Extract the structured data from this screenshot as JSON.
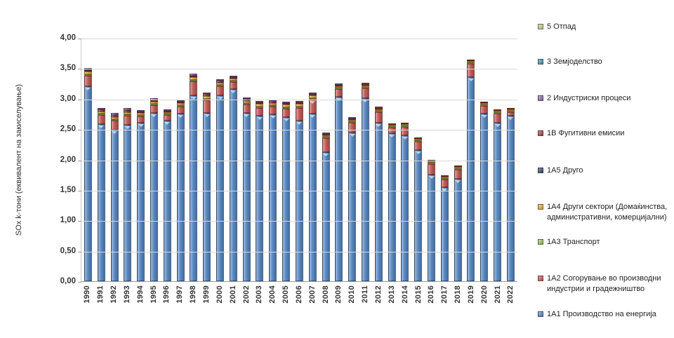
{
  "chart_data": {
    "type": "bar",
    "stacked": true,
    "title": "",
    "ylabel": "SOx k-тони (еквивалент на закиселување)",
    "xlabel": "",
    "ylim": [
      0,
      4
    ],
    "ytick_step": 0.5,
    "ytick_labels_top_to_bottom": [
      "4,00",
      "3,50",
      "3,00",
      "2,50",
      "2,00",
      "1,50",
      "1,00",
      "0,50",
      "0,00"
    ],
    "grid": true,
    "legend_position": "right",
    "categories": [
      "1990",
      "1991",
      "1992",
      "1993",
      "1994",
      "1995",
      "1996",
      "1997",
      "1998",
      "1999",
      "2000",
      "2001",
      "2002",
      "2003",
      "2004",
      "2005",
      "2006",
      "2007",
      "2008",
      "2009",
      "2010",
      "2011",
      "2012",
      "2013",
      "2014",
      "2015",
      "2016",
      "2017",
      "2018",
      "2019",
      "2020",
      "2021",
      "2022"
    ],
    "series": [
      {
        "name": "1А1 Производство на енергија",
        "color": "#4F81BD",
        "values": [
          3.2,
          2.58,
          2.49,
          2.57,
          2.6,
          2.77,
          2.64,
          2.75,
          3.06,
          2.77,
          3.06,
          3.16,
          2.77,
          2.72,
          2.74,
          2.7,
          2.64,
          2.75,
          2.12,
          3.03,
          2.45,
          3.01,
          2.6,
          2.43,
          2.4,
          2.16,
          1.75,
          1.55,
          1.68,
          3.36,
          2.75,
          2.6,
          2.72
        ]
      },
      {
        "name": "1А2 Согорување во производни индустрии и градежништво",
        "color": "#C0504D",
        "values": [
          0.18,
          0.15,
          0.15,
          0.15,
          0.11,
          0.12,
          0.09,
          0.12,
          0.22,
          0.2,
          0.14,
          0.11,
          0.13,
          0.13,
          0.13,
          0.14,
          0.21,
          0.24,
          0.23,
          0.13,
          0.16,
          0.16,
          0.18,
          0.09,
          0.14,
          0.14,
          0.18,
          0.12,
          0.15,
          0.21,
          0.13,
          0.15,
          0.06
        ]
      },
      {
        "name": "1А3 Транспорт",
        "color": "#9BBB59",
        "values": [
          0.02,
          0.02,
          0.02,
          0.02,
          0.02,
          0.02,
          0.02,
          0.02,
          0.02,
          0.02,
          0.02,
          0.02,
          0.02,
          0.02,
          0.02,
          0.02,
          0.02,
          0.02,
          0.01,
          0.01,
          0.01,
          0.01,
          0.01,
          0.01,
          0.01,
          0.01,
          0.01,
          0.01,
          0.01,
          0.01,
          0.01,
          0.01,
          0.01
        ]
      },
      {
        "name": "1А4 Други сектори (Домаќинства, административни, комерцијални)",
        "color": "#E8A33C",
        "values": [
          0.04,
          0.04,
          0.04,
          0.04,
          0.03,
          0.04,
          0.03,
          0.03,
          0.05,
          0.05,
          0.04,
          0.04,
          0.04,
          0.04,
          0.04,
          0.04,
          0.04,
          0.04,
          0.03,
          0.02,
          0.02,
          0.02,
          0.02,
          0.02,
          0.02,
          0.02,
          0.02,
          0.01,
          0.02,
          0.02,
          0.02,
          0.02,
          0.02
        ]
      },
      {
        "name": "1А5 Друго",
        "color": "#254061",
        "values": [
          0,
          0,
          0,
          0,
          0,
          0,
          0,
          0,
          0,
          0,
          0,
          0,
          0,
          0,
          0,
          0,
          0,
          0,
          0,
          0,
          0,
          0,
          0,
          0,
          0,
          0,
          0,
          0,
          0,
          0,
          0,
          0,
          0
        ]
      },
      {
        "name": "1В Фугитивни емисии",
        "color": "#9E3A33",
        "values": [
          0.03,
          0.03,
          0.03,
          0.03,
          0.02,
          0.02,
          0.02,
          0.02,
          0.03,
          0.03,
          0.03,
          0.02,
          0.03,
          0.03,
          0.03,
          0.02,
          0.02,
          0.02,
          0.01,
          0.01,
          0.01,
          0.01,
          0.01,
          0.01,
          0.01,
          0.01,
          0.01,
          0.01,
          0.01,
          0.01,
          0.01,
          0.01,
          0.01
        ]
      },
      {
        "name": "2 Индустриски процеси",
        "color": "#8064A2",
        "values": [
          0.03,
          0.03,
          0.03,
          0.03,
          0.03,
          0.03,
          0.02,
          0.03,
          0.03,
          0.03,
          0.02,
          0.02,
          0.01,
          0.01,
          0.01,
          0.01,
          0.01,
          0.01,
          0.01,
          0.01,
          0.01,
          0.01,
          0.01,
          0,
          0,
          0,
          0,
          0,
          0,
          0,
          0,
          0,
          0
        ]
      },
      {
        "name": "3 Земјоделство",
        "color": "#3E8FA8",
        "values": [
          0,
          0,
          0,
          0,
          0,
          0,
          0,
          0,
          0,
          0,
          0,
          0,
          0,
          0,
          0,
          0,
          0,
          0,
          0,
          0,
          0,
          0,
          0,
          0,
          0,
          0,
          0,
          0,
          0,
          0,
          0,
          0,
          0
        ]
      },
      {
        "name": "5 Отпад",
        "color": "#C8CC8F",
        "values": [
          0,
          0,
          0,
          0,
          0,
          0,
          0,
          0,
          0,
          0,
          0,
          0,
          0,
          0,
          0,
          0,
          0,
          0,
          0,
          0,
          0,
          0,
          0,
          0,
          0,
          0,
          0,
          0,
          0,
          0,
          0,
          0,
          0
        ]
      }
    ],
    "legend_order_top_to_bottom": [
      8,
      7,
      6,
      5,
      4,
      3,
      2,
      1,
      0
    ]
  }
}
